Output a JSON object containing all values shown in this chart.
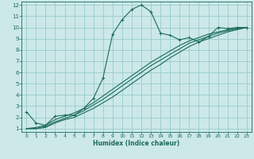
{
  "xlabel": "Humidex (Indice chaleur)",
  "bg_color": "#cce8e8",
  "grid_color": "#99cccc",
  "line_color": "#1a6b5a",
  "xlim": [
    -0.5,
    23.5
  ],
  "ylim": [
    0.7,
    12.3
  ],
  "xticks": [
    0,
    1,
    2,
    3,
    4,
    5,
    6,
    7,
    8,
    9,
    10,
    11,
    12,
    13,
    14,
    15,
    16,
    17,
    18,
    19,
    20,
    21,
    22,
    23
  ],
  "yticks": [
    1,
    2,
    3,
    4,
    5,
    6,
    7,
    8,
    9,
    10,
    11,
    12
  ],
  "curve1_x": [
    0,
    1,
    2,
    3,
    4,
    5,
    6,
    7,
    8,
    9,
    10,
    11,
    12,
    13,
    14,
    15,
    16,
    17,
    18,
    19,
    20,
    21,
    22,
    23
  ],
  "curve1_y": [
    2.5,
    1.5,
    1.3,
    2.1,
    2.2,
    2.2,
    2.8,
    3.7,
    5.5,
    9.4,
    10.7,
    11.6,
    12.0,
    11.4,
    9.5,
    9.3,
    8.9,
    9.1,
    8.7,
    9.2,
    10.0,
    9.9,
    10.0,
    10.0
  ],
  "curve2_x": [
    0,
    1,
    2,
    3,
    4,
    5,
    6,
    7,
    8,
    9,
    10,
    11,
    12,
    13,
    14,
    15,
    16,
    17,
    18,
    19,
    20,
    21,
    22,
    23
  ],
  "curve2_y": [
    1.0,
    1.1,
    1.3,
    1.8,
    2.1,
    2.4,
    2.8,
    3.3,
    3.9,
    4.5,
    5.1,
    5.7,
    6.3,
    6.9,
    7.4,
    7.9,
    8.4,
    8.8,
    9.1,
    9.4,
    9.6,
    9.8,
    9.9,
    10.0
  ],
  "curve3_x": [
    0,
    1,
    2,
    3,
    4,
    5,
    6,
    7,
    8,
    9,
    10,
    11,
    12,
    13,
    14,
    15,
    16,
    17,
    18,
    19,
    20,
    21,
    22,
    23
  ],
  "curve3_y": [
    1.0,
    1.0,
    1.2,
    1.6,
    1.9,
    2.2,
    2.6,
    3.1,
    3.6,
    4.2,
    4.8,
    5.4,
    6.0,
    6.6,
    7.1,
    7.6,
    8.1,
    8.6,
    8.9,
    9.2,
    9.5,
    9.7,
    9.9,
    10.0
  ],
  "curve4_x": [
    0,
    1,
    2,
    3,
    4,
    5,
    6,
    7,
    8,
    9,
    10,
    11,
    12,
    13,
    14,
    15,
    16,
    17,
    18,
    19,
    20,
    21,
    22,
    23
  ],
  "curve4_y": [
    1.0,
    1.0,
    1.1,
    1.5,
    1.8,
    2.0,
    2.4,
    2.8,
    3.3,
    3.8,
    4.4,
    5.0,
    5.6,
    6.2,
    6.7,
    7.3,
    7.8,
    8.3,
    8.7,
    9.0,
    9.3,
    9.6,
    9.8,
    10.0
  ]
}
